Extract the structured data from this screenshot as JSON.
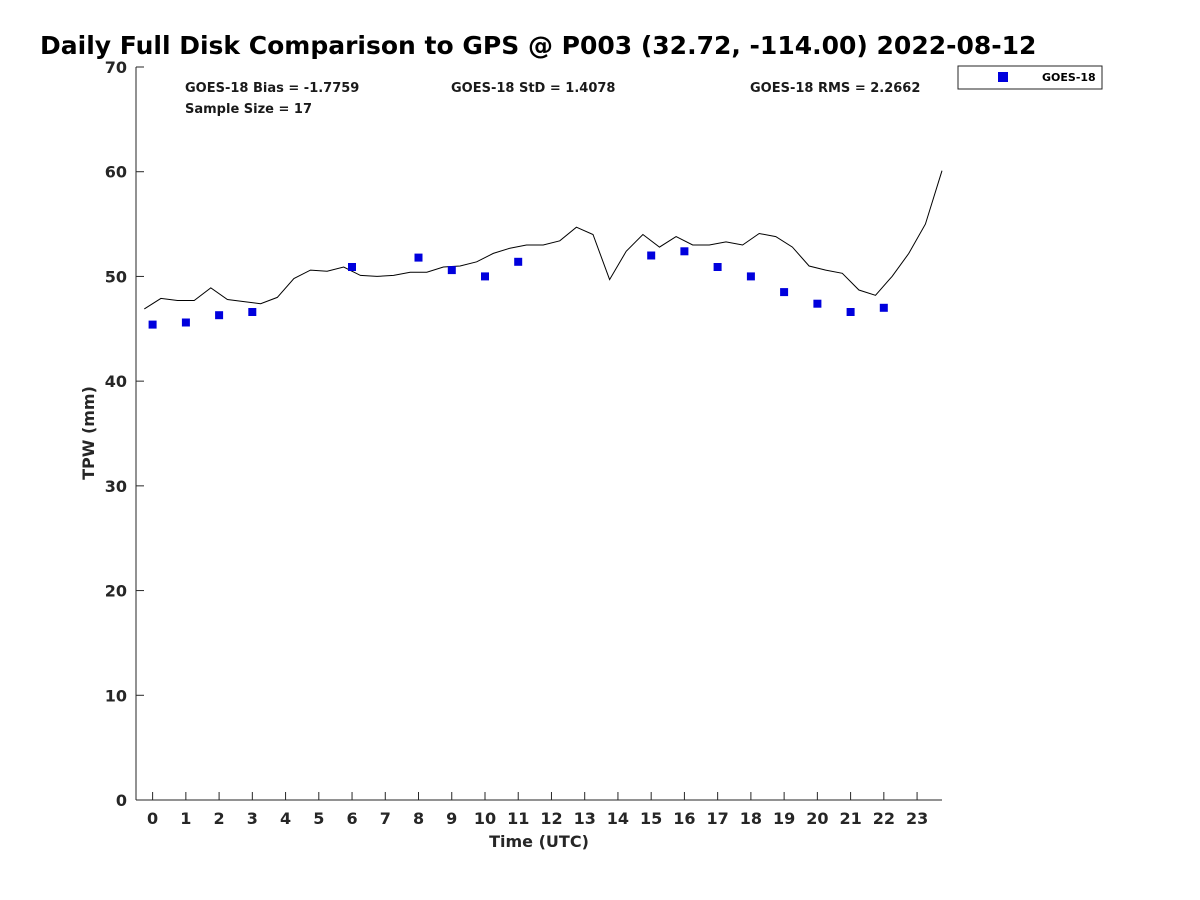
{
  "chart_data": {
    "type": "scatter",
    "title": "Daily Full Disk Comparison to GPS @ P003 (32.72, -114.00) 2022-08-12",
    "xlabel": "Time (UTC)",
    "ylabel": "TPW (mm)",
    "xlim": [
      -0.5,
      23.75
    ],
    "ylim": [
      0,
      70
    ],
    "x_ticks": [
      "0",
      "1",
      "2",
      "3",
      "4",
      "5",
      "6",
      "7",
      "8",
      "9",
      "10",
      "11",
      "12",
      "13",
      "14",
      "15",
      "16",
      "17",
      "18",
      "19",
      "20",
      "21",
      "22",
      "23"
    ],
    "y_ticks": [
      "0",
      "10",
      "20",
      "30",
      "40",
      "50",
      "60",
      "70"
    ],
    "grid": false,
    "legend_position": "outside top-right",
    "stats": {
      "bias": "GOES-18 Bias = -1.7759",
      "std": "GOES-18 StD = 1.4078",
      "rms": "GOES-18 RMS = 2.2662",
      "sample": "Sample Size = 17"
    },
    "series": [
      {
        "name": "GOES-18",
        "kind": "scatter",
        "color": "#0000dd",
        "marker": "square",
        "x": [
          0,
          1,
          2,
          3,
          6,
          8,
          9,
          10,
          11,
          15,
          16,
          17,
          18,
          19,
          20,
          21,
          22
        ],
        "y": [
          45.4,
          45.6,
          46.3,
          46.6,
          50.9,
          51.8,
          50.6,
          50.0,
          51.4,
          52.0,
          52.4,
          50.9,
          50.0,
          48.5,
          47.4,
          46.6,
          47.0
        ]
      },
      {
        "kind": "line",
        "color": "#000000",
        "x": [
          -0.25,
          0.25,
          0.75,
          1.25,
          1.75,
          2.25,
          2.75,
          3.25,
          3.75,
          4.25,
          4.75,
          5.25,
          5.75,
          6.25,
          6.75,
          7.25,
          7.75,
          8.25,
          8.75,
          9.25,
          9.75,
          10.25,
          10.75,
          11.25,
          11.75,
          12.25,
          12.75,
          13.25,
          13.75,
          14.25,
          14.75,
          15.25,
          15.75,
          16.25,
          16.75,
          17.25,
          17.75,
          18.25,
          18.75,
          19.25,
          19.75,
          20.25,
          20.75,
          21.25,
          21.75,
          22.25,
          22.75,
          23.25,
          23.75
        ],
        "y": [
          46.9,
          47.9,
          47.7,
          47.7,
          48.9,
          47.8,
          47.6,
          47.4,
          48.0,
          49.8,
          50.6,
          50.5,
          50.9,
          50.1,
          50.0,
          50.1,
          50.4,
          50.4,
          50.9,
          51.0,
          51.4,
          52.2,
          52.7,
          53.0,
          53.0,
          53.4,
          54.7,
          54.0,
          49.7,
          52.4,
          54.0,
          52.8,
          53.8,
          53.0,
          53.0,
          53.3,
          53.0,
          54.1,
          53.8,
          52.8,
          51.0,
          50.6,
          50.3,
          48.7,
          48.2,
          50.0,
          52.2,
          55.0,
          60.1
        ]
      }
    ]
  }
}
